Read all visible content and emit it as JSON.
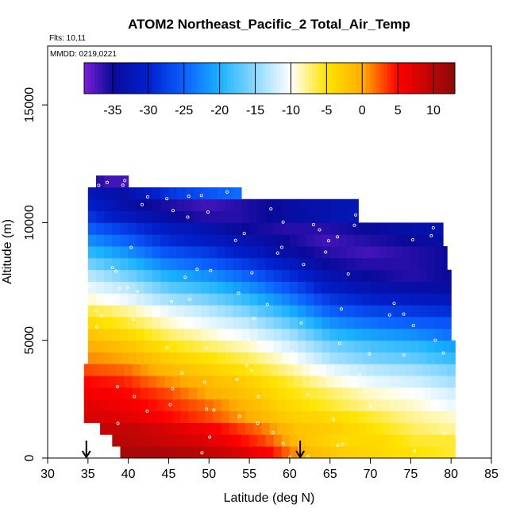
{
  "header": {
    "title": "ATOM2 Northeast_Pacific_2 Total_Air_Temp",
    "flights": "Flts: 10,11",
    "dates": "MMDD: 0219,0221"
  },
  "colors": {
    "scale": [
      "#7a1fd6",
      "#0a0a9a",
      "#0020cc",
      "#0b5fff",
      "#19b1ff",
      "#ffffff",
      "#ffe400",
      "#ffae00",
      "#ff0000",
      "#8b0a0a"
    ],
    "markers": "#ffffff",
    "arrow": "#000000"
  },
  "chart_data": {
    "type": "heatmap",
    "title": "ATOM2 Northeast_Pacific_2 Total_Air_Temp",
    "xlabel": "Latitude (deg N)",
    "ylabel": "Altitude (m)",
    "xlim": [
      30,
      85
    ],
    "ylim": [
      0,
      17500
    ],
    "xticks": [
      30,
      35,
      40,
      45,
      50,
      55,
      60,
      65,
      70,
      75,
      80,
      85
    ],
    "yticks": [
      0,
      5000,
      10000,
      15000
    ],
    "colorbar": {
      "range": [
        -39,
        13
      ],
      "ticks": [
        -35,
        -30,
        -25,
        -20,
        -15,
        -10,
        -5,
        0,
        5,
        10
      ]
    },
    "arrows_latitude": [
      34.8,
      61.3
    ],
    "altitude_bands": [
      {
        "alt": [
          0,
          500
        ],
        "lat": [
          39.0,
          80.5
        ],
        "temp": [
          11,
          11,
          10,
          8,
          5,
          -1,
          -3,
          -4,
          -5,
          -6
        ]
      },
      {
        "alt": [
          500,
          1000
        ],
        "lat": [
          38.0,
          80.5
        ],
        "temp": [
          10,
          9,
          8,
          6,
          3,
          -2,
          -4,
          -4,
          -6,
          -6
        ]
      },
      {
        "alt": [
          1000,
          1500
        ],
        "lat": [
          36.5,
          80.5
        ],
        "temp": [
          9,
          9,
          7,
          5,
          2,
          -2,
          -3,
          -5,
          -7,
          -8
        ]
      },
      {
        "alt": [
          1500,
          2000
        ],
        "lat": [
          34.5,
          80.5
        ],
        "temp": [
          8,
          7,
          5,
          3,
          0,
          -3,
          -4,
          -6,
          -8,
          -9
        ]
      },
      {
        "alt": [
          2000,
          2500
        ],
        "lat": [
          34.5,
          80.5
        ],
        "temp": [
          7,
          6,
          4,
          2,
          -1,
          -4,
          -6,
          -8,
          -9,
          -11
        ]
      },
      {
        "alt": [
          2500,
          3000
        ],
        "lat": [
          34.5,
          80.5
        ],
        "temp": [
          6,
          5,
          3,
          0,
          -2,
          -5,
          -7,
          -9,
          -10,
          -12
        ]
      },
      {
        "alt": [
          3000,
          3500
        ],
        "lat": [
          34.5,
          80.5
        ],
        "temp": [
          5,
          4,
          1,
          -1,
          -3,
          -6,
          -9,
          -11,
          -12,
          -14
        ]
      },
      {
        "alt": [
          3500,
          4000
        ],
        "lat": [
          34.5,
          80.5
        ],
        "temp": [
          3,
          2,
          -1,
          -3,
          -5,
          -8,
          -11,
          -13,
          -14,
          -16
        ]
      },
      {
        "alt": [
          4000,
          4500
        ],
        "lat": [
          35.0,
          80.5
        ],
        "temp": [
          1,
          0,
          -3,
          -5,
          -7,
          -10,
          -14,
          -16,
          -17,
          -19
        ]
      },
      {
        "alt": [
          4500,
          5000
        ],
        "lat": [
          35.0,
          80.5
        ],
        "temp": [
          0,
          -2,
          -5,
          -7,
          -9,
          -12,
          -16,
          -18,
          -19,
          -21
        ]
      },
      {
        "alt": [
          5000,
          5500
        ],
        "lat": [
          35.0,
          80.0
        ],
        "temp": [
          -2,
          -4,
          -7,
          -9,
          -11,
          -14,
          -19,
          -21,
          -22,
          -24
        ]
      },
      {
        "alt": [
          5500,
          6000
        ],
        "lat": [
          35.0,
          80.0
        ],
        "temp": [
          -4,
          -6,
          -9,
          -11,
          -13,
          -17,
          -22,
          -24,
          -25,
          -26
        ]
      },
      {
        "alt": [
          6000,
          6500
        ],
        "lat": [
          35.0,
          80.0
        ],
        "temp": [
          -6,
          -8,
          -11,
          -13,
          -16,
          -20,
          -25,
          -27,
          -28,
          -29
        ]
      },
      {
        "alt": [
          6500,
          7000
        ],
        "lat": [
          35.0,
          80.0
        ],
        "temp": [
          -9,
          -11,
          -14,
          -16,
          -19,
          -23,
          -28,
          -30,
          -31,
          -32
        ]
      },
      {
        "alt": [
          7000,
          7500
        ],
        "lat": [
          35.0,
          80.0
        ],
        "temp": [
          -11,
          -13,
          -17,
          -19,
          -22,
          -26,
          -31,
          -33,
          -34,
          -34
        ]
      },
      {
        "alt": [
          7500,
          8000
        ],
        "lat": [
          35.0,
          80.0
        ],
        "temp": [
          -13,
          -16,
          -20,
          -22,
          -25,
          -29,
          -33,
          -35,
          -36,
          -35
        ]
      },
      {
        "alt": [
          8000,
          8500
        ],
        "lat": [
          35.0,
          79.5
        ],
        "temp": [
          -16,
          -19,
          -23,
          -25,
          -28,
          -31,
          -35,
          -36,
          -36,
          -35
        ]
      },
      {
        "alt": [
          8500,
          9000
        ],
        "lat": [
          35.0,
          79.5
        ],
        "temp": [
          -19,
          -22,
          -26,
          -28,
          -31,
          -34,
          -36,
          -37,
          -36,
          -35
        ]
      },
      {
        "alt": [
          9000,
          9500
        ],
        "lat": [
          35.0,
          79.0
        ],
        "temp": [
          -22,
          -25,
          -29,
          -31,
          -33,
          -35,
          -37,
          -36,
          -35,
          -34
        ]
      },
      {
        "alt": [
          9500,
          10000
        ],
        "lat": [
          35.0,
          79.0
        ],
        "temp": [
          -25,
          -28,
          -31,
          -33,
          -35,
          -36,
          -36,
          -35,
          -34,
          -33
        ]
      },
      {
        "alt": [
          10000,
          10500
        ],
        "lat": [
          35.0,
          68.5
        ],
        "temp": [
          -28,
          -31,
          -33,
          -35,
          -36,
          -36,
          -35,
          -34,
          -33,
          -32
        ]
      },
      {
        "alt": [
          10500,
          11000
        ],
        "lat": [
          35.0,
          68.5
        ],
        "temp": [
          -30,
          -33,
          -35,
          -36,
          -37,
          -36,
          -35,
          -34,
          -33,
          -32
        ]
      },
      {
        "alt": [
          11000,
          11500
        ],
        "lat": [
          35.0,
          54.0
        ],
        "temp": [
          -32,
          -33,
          -34,
          -32,
          -30,
          -28,
          -27,
          -26,
          -25,
          -24
        ]
      },
      {
        "alt": [
          11500,
          12000
        ],
        "lat": [
          36.0,
          40.0
        ],
        "temp": [
          -36,
          -36,
          -37,
          -37,
          -37,
          -37,
          -37,
          -37,
          -37,
          -37
        ]
      }
    ]
  }
}
